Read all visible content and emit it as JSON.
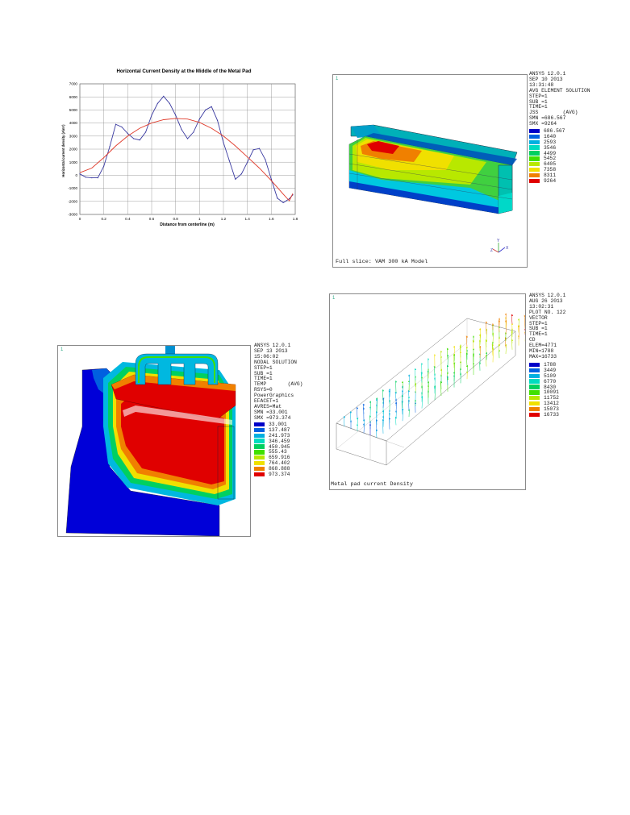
{
  "chart_data": {
    "type": "line",
    "title": "Horizontal Current Density at the Middle of the Metal Pad",
    "xlabel": "Distance from centerline (m)",
    "ylabel": "Horizontal current density (A/m²)",
    "xlim": [
      0,
      1.8
    ],
    "ylim": [
      -3000,
      7000
    ],
    "xticks": [
      "0",
      "0.2",
      "0.4",
      "0.6",
      "0.8",
      "1",
      "1.2",
      "1.4",
      "1.6",
      "1.8"
    ],
    "yticks": [
      "7000",
      "6000",
      "5000",
      "4000",
      "3000",
      "2000",
      "1000",
      "0",
      "-1000",
      "-2000",
      "-3000"
    ],
    "grid": true,
    "series": [
      {
        "color": "#3a3aa0",
        "x": [
          0,
          0.05,
          0.1,
          0.15,
          0.2,
          0.25,
          0.3,
          0.35,
          0.4,
          0.45,
          0.5,
          0.55,
          0.6,
          0.65,
          0.7,
          0.75,
          0.8,
          0.85,
          0.9,
          0.95,
          1.0,
          1.05,
          1.1,
          1.15,
          1.2,
          1.25,
          1.3,
          1.35,
          1.4,
          1.45,
          1.5,
          1.55,
          1.6,
          1.65,
          1.7,
          1.75,
          1.78
        ],
        "y": [
          100,
          -150,
          -200,
          -200,
          700,
          2200,
          3900,
          3700,
          3200,
          2800,
          2700,
          3300,
          4600,
          5500,
          6050,
          5500,
          4600,
          3500,
          2800,
          3300,
          4300,
          5000,
          5250,
          4200,
          2500,
          1100,
          -300,
          100,
          1000,
          1950,
          2050,
          1200,
          -300,
          -1750,
          -2100,
          -1800,
          -1500
        ]
      },
      {
        "color": "#e03a2a",
        "x": [
          0,
          0.1,
          0.2,
          0.3,
          0.4,
          0.5,
          0.6,
          0.7,
          0.8,
          0.9,
          1.0,
          1.1,
          1.2,
          1.3,
          1.4,
          1.5,
          1.6,
          1.7,
          1.75,
          1.78
        ],
        "y": [
          200,
          550,
          1350,
          2250,
          3000,
          3600,
          4000,
          4250,
          4350,
          4300,
          4050,
          3600,
          3000,
          2250,
          1400,
          550,
          -400,
          -1450,
          -1950,
          -1400
        ]
      }
    ]
  },
  "panel_b": {
    "header": [
      "ANSYS 12.0.1",
      "SEP 10 2013",
      "13:31:48",
      "AVG ELEMENT SOLUTION",
      "STEP=1",
      "SUB =1",
      "TIME=1",
      "JSS        (AVG)",
      "SMN =686.567",
      "SMX =9264"
    ],
    "legend": [
      {
        "label": "686.567",
        "color": "#0000c8"
      },
      {
        "label": "1640",
        "color": "#0060e0"
      },
      {
        "label": "2593",
        "color": "#00b0e0"
      },
      {
        "label": "3546",
        "color": "#00dcc0"
      },
      {
        "label": "4499",
        "color": "#00d060"
      },
      {
        "label": "5452",
        "color": "#40e000"
      },
      {
        "label": "6405",
        "color": "#b8e800"
      },
      {
        "label": "7358",
        "color": "#f0e000"
      },
      {
        "label": "8311",
        "color": "#f08000"
      },
      {
        "label": "9264",
        "color": "#e00000"
      }
    ],
    "axis_labels": [
      "Y",
      "Z",
      "X"
    ],
    "caption": "Full slice: VAM 300 kA Model"
  },
  "panel_c": {
    "header": [
      "ANSYS 12.0.1",
      "SEP 13 2013",
      "15:06:02",
      "NODAL SOLUTION",
      "STEP=1",
      "SUB =1",
      "TIME=1",
      "TEMP       (AVG)",
      "RSYS=0",
      "PowerGraphics",
      "EFACET=1",
      "AVRES=Mat",
      "SMN =33.001",
      "SMX =973.374"
    ],
    "legend": [
      {
        "label": "33.001",
        "color": "#0000c8"
      },
      {
        "label": "137.487",
        "color": "#0060e0"
      },
      {
        "label": "241.973",
        "color": "#00b0e0"
      },
      {
        "label": "346.459",
        "color": "#00dcc0"
      },
      {
        "label": "450.945",
        "color": "#00d060"
      },
      {
        "label": "555.43",
        "color": "#40e000"
      },
      {
        "label": "659.916",
        "color": "#b8e800"
      },
      {
        "label": "764.402",
        "color": "#f0e000"
      },
      {
        "label": "868.888",
        "color": "#f08000"
      },
      {
        "label": "973.374",
        "color": "#e00000"
      }
    ]
  },
  "panel_d": {
    "header": [
      "ANSYS 12.0.1",
      "AUG 26 2013",
      "13:02:31",
      "PLOT NO. 122",
      "VECTOR",
      "STEP=1",
      "SUB =1",
      "TIME=1",
      "CD",
      "ELEM=4771",
      "MIN=1788",
      "MAX=16733"
    ],
    "legend": [
      {
        "label": "1788",
        "color": "#0000c8"
      },
      {
        "label": "3449",
        "color": "#0060e0"
      },
      {
        "label": "5109",
        "color": "#00b0e0"
      },
      {
        "label": "6770",
        "color": "#00dcc0"
      },
      {
        "label": "8430",
        "color": "#00d060"
      },
      {
        "label": "10091",
        "color": "#40e000"
      },
      {
        "label": "11752",
        "color": "#b8e800"
      },
      {
        "label": "13412",
        "color": "#f0e000"
      },
      {
        "label": "15073",
        "color": "#f08000"
      },
      {
        "label": "16733",
        "color": "#e00000"
      }
    ],
    "caption": "Metal pad current Density"
  }
}
